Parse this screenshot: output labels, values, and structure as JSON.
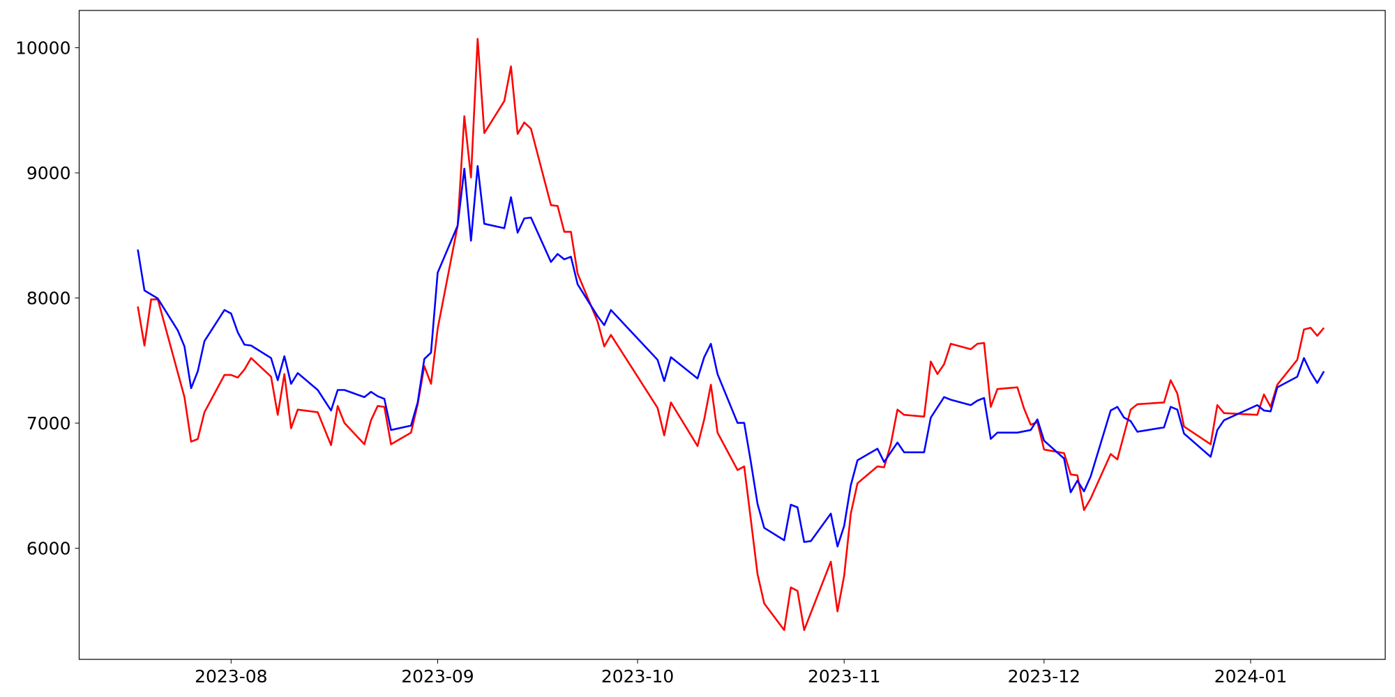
{
  "chart_data": {
    "type": "line",
    "xlim": [
      19547.2,
      19743.2
    ],
    "xticks": [
      {
        "value": 19570,
        "label": "2023-08"
      },
      {
        "value": 19601,
        "label": "2023-09"
      },
      {
        "value": 19631,
        "label": "2023-10"
      },
      {
        "value": 19662,
        "label": "2023-11"
      },
      {
        "value": 19692,
        "label": "2023-12"
      },
      {
        "value": 19723,
        "label": "2024-01"
      }
    ],
    "ylim": [
      5112,
      10298
    ],
    "yticks": [
      6000,
      7000,
      8000,
      9000,
      10000
    ],
    "series": [
      {
        "color": "#ff0000",
        "x": [
          19556,
          19557,
          19558,
          19559,
          19563,
          19564,
          19565,
          19566,
          19569,
          19570,
          19571,
          19572,
          19573,
          19576,
          19577,
          19578,
          19579,
          19580,
          19583,
          19585,
          19586,
          19587,
          19590,
          19591,
          19592,
          19593,
          19594,
          19597,
          19598,
          19599,
          19600,
          19601,
          19604,
          19605,
          19606,
          19607,
          19608,
          19611,
          19612,
          19613,
          19614,
          19615,
          19618,
          19619,
          19620,
          19621,
          19622,
          19625,
          19626,
          19627,
          19634,
          19635,
          19636,
          19640,
          19641,
          19642,
          19643,
          19646,
          19647,
          19648,
          19649,
          19650,
          19653,
          19654,
          19655,
          19656,
          19660,
          19661,
          19662,
          19663,
          19664,
          19667,
          19668,
          19669,
          19670,
          19671,
          19674,
          19675,
          19676,
          19677,
          19678,
          19681,
          19682,
          19683,
          19684,
          19685,
          19688,
          19689,
          19690,
          19691,
          19692,
          19695,
          19696,
          19697,
          19698,
          19699,
          19702,
          19703,
          19704,
          19705,
          19706,
          19710,
          19711,
          19712,
          19713,
          19717,
          19718,
          19719,
          19724,
          19725,
          19726,
          19727,
          19730,
          19731,
          19732,
          19733,
          19734
        ],
        "values": [
          7932,
          7620,
          7989,
          7989,
          7208,
          6852,
          6873,
          7087,
          7385,
          7385,
          7364,
          7428,
          7520,
          7371,
          7066,
          7392,
          6959,
          7108,
          7087,
          6824,
          7137,
          7002,
          6831,
          7023,
          7137,
          7130,
          6831,
          6924,
          7151,
          7456,
          7314,
          7755,
          8579,
          9453,
          8963,
          10071,
          9318,
          9574,
          9851,
          9311,
          9403,
          9353,
          8742,
          8735,
          8529,
          8529,
          8195,
          7812,
          7613,
          7705,
          7122,
          6902,
          7165,
          6817,
          7030,
          7307,
          6924,
          6625,
          6654,
          6227,
          5794,
          5559,
          5346,
          5687,
          5659,
          5346,
          5893,
          5495,
          5780,
          6277,
          6519,
          6654,
          6647,
          6831,
          7108,
          7066,
          7052,
          7492,
          7392,
          7471,
          7634,
          7591,
          7634,
          7641,
          7130,
          7272,
          7286,
          7116,
          6987,
          7009,
          6789,
          6760,
          6590,
          6583,
          6305,
          6398,
          6753,
          6710,
          6909,
          7108,
          7151,
          7165,
          7343,
          7236,
          6973,
          6831,
          7144,
          7080,
          7066,
          7229,
          7130,
          7307,
          7506,
          7748,
          7762,
          7698,
          7762
        ]
      },
      {
        "color": "#0000ff",
        "x": [
          19556,
          19557,
          19559,
          19562,
          19563,
          19564,
          19565,
          19566,
          19569,
          19570,
          19571,
          19572,
          19573,
          19576,
          19577,
          19578,
          19579,
          19580,
          19583,
          19585,
          19586,
          19587,
          19590,
          19591,
          19592,
          19593,
          19594,
          19597,
          19598,
          19599,
          19600,
          19601,
          19604,
          19605,
          19606,
          19607,
          19608,
          19611,
          19612,
          19613,
          19614,
          19615,
          19618,
          19619,
          19620,
          19621,
          19622,
          19625,
          19626,
          19627,
          19634,
          19635,
          19636,
          19640,
          19641,
          19642,
          19643,
          19646,
          19647,
          19648,
          19649,
          19650,
          19653,
          19654,
          19655,
          19656,
          19657,
          19660,
          19661,
          19662,
          19663,
          19664,
          19667,
          19668,
          19670,
          19671,
          19674,
          19675,
          19677,
          19678,
          19681,
          19682,
          19683,
          19684,
          19685,
          19688,
          19690,
          19691,
          19692,
          19695,
          19696,
          19697,
          19698,
          19699,
          19702,
          19703,
          19704,
          19705,
          19706,
          19710,
          19711,
          19712,
          19713,
          19717,
          19718,
          19719,
          19724,
          19725,
          19726,
          19727,
          19730,
          19731,
          19732,
          19733,
          19734
        ],
        "values": [
          8387,
          8060,
          7996,
          7741,
          7613,
          7279,
          7414,
          7655,
          7904,
          7876,
          7726,
          7627,
          7620,
          7520,
          7343,
          7535,
          7314,
          7400,
          7265,
          7101,
          7265,
          7265,
          7208,
          7250,
          7215,
          7194,
          6945,
          6980,
          7165,
          7513,
          7563,
          8202,
          8579,
          9034,
          8458,
          9055,
          8593,
          8558,
          8806,
          8522,
          8636,
          8643,
          8288,
          8352,
          8309,
          8330,
          8110,
          7854,
          7783,
          7904,
          7506,
          7336,
          7527,
          7357,
          7527,
          7634,
          7392,
          7002,
          7002,
          6689,
          6355,
          6163,
          6064,
          6348,
          6327,
          6050,
          6057,
          6277,
          6014,
          6178,
          6504,
          6703,
          6796,
          6689,
          6845,
          6767,
          6767,
          7044,
          7208,
          7187,
          7144,
          7180,
          7201,
          6874,
          6924,
          6924,
          6945,
          7030,
          6860,
          6717,
          6447,
          6540,
          6455,
          6575,
          7101,
          7130,
          7044,
          7016,
          6931,
          6966,
          7130,
          7108,
          6917,
          6731,
          6945,
          7023,
          7144,
          7101,
          7094,
          7286,
          7371,
          7520,
          7407,
          7321,
          7414
        ]
      }
    ]
  }
}
